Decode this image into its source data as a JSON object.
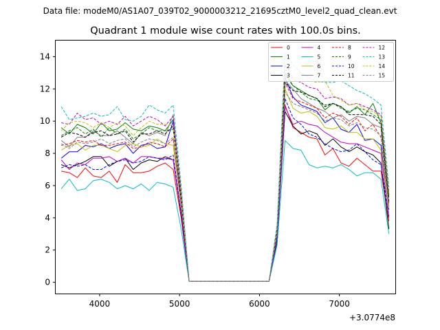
{
  "figure": {
    "suptitle": "Data file: modeM0/AS1A07_039T02_9000003212_21695cztM0_level2_quad_clean.evt"
  },
  "chart_data": {
    "type": "line",
    "title": "Quadrant 1 module wise count rates with 100.0s bins.",
    "xlabel": "",
    "ylabel": "",
    "x_offset_label": "+3.0774e8",
    "xlim": [
      3450,
      7700
    ],
    "ylim": [
      -0.7,
      15
    ],
    "xticks": [
      4000,
      5000,
      6000,
      7000
    ],
    "yticks": [
      0,
      2,
      4,
      6,
      8,
      10,
      12,
      14
    ],
    "grid": false,
    "legend": {
      "placement": "top-right",
      "columns": 4
    },
    "x": [
      3520,
      3620,
      3720,
      3820,
      3920,
      4020,
      4120,
      4220,
      4320,
      4420,
      4520,
      4620,
      4720,
      4820,
      4920,
      5020,
      5120,
      5220,
      5320,
      5420,
      5520,
      5620,
      5720,
      5820,
      5920,
      6020,
      6120,
      6220,
      6320,
      6420,
      6520,
      6620,
      6720,
      6820,
      6920,
      7020,
      7120,
      7220,
      7320,
      7420,
      7520,
      7620
    ],
    "series": [
      {
        "name": "0",
        "color": "#ff0000",
        "dash": "solid",
        "values": [
          6.9,
          6.8,
          6.5,
          7.1,
          6.6,
          6.5,
          6.9,
          6.2,
          7.3,
          6.8,
          6.8,
          6.9,
          7.2,
          7.4,
          7.0,
          4.0,
          0.05,
          0.05,
          0.05,
          0.05,
          0.05,
          0.05,
          0.05,
          0.05,
          0.05,
          0.05,
          0.05,
          2.5,
          11.0,
          9.6,
          9.3,
          9.0,
          8.9,
          7.9,
          8.3,
          7.4,
          7.2,
          7.7,
          7.3,
          6.9,
          6.9,
          3.8
        ]
      },
      {
        "name": "1",
        "color": "#008000",
        "dash": "solid",
        "values": [
          9.6,
          9.2,
          9.8,
          9.6,
          9.2,
          9.9,
          9.4,
          9.5,
          9.9,
          9.5,
          9.4,
          9.7,
          9.6,
          9.4,
          10.1,
          5.5,
          0.05,
          0.05,
          0.05,
          0.05,
          0.05,
          0.05,
          0.05,
          0.05,
          0.05,
          0.05,
          0.05,
          3.2,
          13.0,
          12.2,
          11.9,
          11.6,
          11.4,
          10.7,
          11.1,
          10.9,
          10.5,
          10.9,
          10.4,
          11.1,
          9.9,
          5.3
        ]
      },
      {
        "name": "2",
        "color": "#0000ff",
        "dash": "solid",
        "values": [
          7.7,
          8.1,
          8.1,
          8.5,
          8.4,
          8.6,
          8.3,
          8.5,
          8.6,
          8.0,
          8.5,
          8.6,
          8.3,
          8.4,
          10.0,
          4.9,
          0.05,
          0.05,
          0.05,
          0.05,
          0.05,
          0.05,
          0.05,
          0.05,
          0.05,
          0.05,
          0.05,
          2.9,
          12.7,
          11.5,
          11.0,
          10.8,
          10.6,
          9.9,
          10.2,
          9.5,
          9.3,
          9.8,
          8.8,
          8.9,
          8.5,
          4.5
        ]
      },
      {
        "name": "3",
        "color": "#000000",
        "dash": "solid",
        "values": [
          7.3,
          7.1,
          7.3,
          7.5,
          7.8,
          7.8,
          7.2,
          7.5,
          7.7,
          7.0,
          7.4,
          7.6,
          7.5,
          7.8,
          7.6,
          4.2,
          0.05,
          0.05,
          0.05,
          0.05,
          0.05,
          0.05,
          0.05,
          0.05,
          0.05,
          0.05,
          0.05,
          2.6,
          10.6,
          9.7,
          9.2,
          9.4,
          9.2,
          8.5,
          8.9,
          8.4,
          8.1,
          8.4,
          8.1,
          7.9,
          7.4,
          3.3
        ]
      },
      {
        "name": "4",
        "color": "#bf00bf",
        "dash": "solid",
        "values": [
          7.6,
          7.0,
          7.4,
          7.3,
          7.7,
          7.7,
          7.8,
          7.5,
          7.7,
          7.4,
          7.8,
          7.8,
          7.7,
          7.7,
          7.6,
          4.3,
          0.05,
          0.05,
          0.05,
          0.05,
          0.05,
          0.05,
          0.05,
          0.05,
          0.05,
          0.05,
          0.05,
          2.7,
          10.9,
          9.8,
          10.0,
          9.8,
          9.7,
          9.3,
          9.0,
          8.7,
          8.6,
          8.6,
          8.4,
          8.2,
          8.0,
          4.0
        ]
      },
      {
        "name": "5",
        "color": "#00bfbf",
        "dash": "solid",
        "values": [
          5.8,
          6.4,
          5.7,
          5.8,
          6.3,
          6.4,
          6.2,
          5.8,
          6.0,
          5.8,
          6.1,
          5.7,
          6.2,
          6.1,
          5.9,
          3.3,
          0.05,
          0.05,
          0.05,
          0.05,
          0.05,
          0.05,
          0.05,
          0.05,
          0.05,
          0.05,
          0.05,
          2.3,
          8.8,
          8.3,
          8.2,
          7.3,
          7.1,
          7.2,
          7.1,
          7.3,
          7.0,
          6.6,
          6.8,
          6.8,
          6.4,
          3.0
        ]
      },
      {
        "name": "6",
        "color": "#bfbf00",
        "dash": "solid",
        "values": [
          8.2,
          8.5,
          8.6,
          8.2,
          8.5,
          8.5,
          8.3,
          8.1,
          8.5,
          8.6,
          8.4,
          8.5,
          8.9,
          8.6,
          8.5,
          4.8,
          0.05,
          0.05,
          0.05,
          0.05,
          0.05,
          0.05,
          0.05,
          0.05,
          0.05,
          0.05,
          0.05,
          3.0,
          12.0,
          10.8,
          10.5,
          10.6,
          10.3,
          9.6,
          9.5,
          9.7,
          9.3,
          9.3,
          8.9,
          8.9,
          8.2,
          4.6
        ]
      },
      {
        "name": "7",
        "color": "#808080",
        "dash": "solid",
        "values": [
          8.8,
          8.4,
          9.0,
          9.0,
          9.4,
          9.1,
          9.1,
          9.4,
          9.0,
          8.6,
          9.3,
          9.1,
          9.3,
          9.1,
          10.4,
          5.3,
          0.05,
          0.05,
          0.05,
          0.05,
          0.05,
          0.05,
          0.05,
          0.05,
          0.05,
          0.05,
          0.05,
          3.1,
          12.5,
          12.0,
          11.4,
          11.1,
          10.8,
          10.6,
          10.2,
          10.4,
          10.0,
          10.3,
          10.2,
          9.8,
          9.6,
          4.9
        ]
      },
      {
        "name": "8",
        "color": "#ff0000",
        "dash": "dashed",
        "values": [
          8.5,
          8.6,
          8.8,
          8.7,
          8.8,
          8.5,
          8.5,
          8.6,
          8.7,
          8.3,
          8.4,
          8.7,
          8.6,
          8.4,
          8.9,
          4.8,
          0.05,
          0.05,
          0.05,
          0.05,
          0.05,
          0.05,
          0.05,
          0.05,
          0.05,
          0.05,
          0.05,
          3.0,
          12.4,
          11.4,
          11.2,
          11.0,
          10.8,
          10.2,
          10.5,
          10.3,
          9.8,
          10.2,
          9.4,
          9.8,
          9.0,
          4.8
        ]
      },
      {
        "name": "9",
        "color": "#008000",
        "dash": "dashed",
        "values": [
          9.1,
          9.4,
          9.6,
          9.2,
          9.5,
          9.0,
          9.6,
          9.2,
          9.5,
          8.9,
          9.2,
          9.6,
          9.4,
          9.4,
          9.5,
          5.3,
          0.05,
          0.05,
          0.05,
          0.05,
          0.05,
          0.05,
          0.05,
          0.05,
          0.05,
          0.05,
          0.05,
          3.2,
          12.8,
          12.2,
          11.8,
          11.4,
          11.3,
          11.0,
          11.1,
          10.8,
          10.6,
          10.8,
          10.7,
          10.4,
          10.1,
          5.4
        ]
      },
      {
        "name": "10",
        "color": "#0000ff",
        "dash": "dashed",
        "values": [
          7.1,
          7.3,
          7.2,
          7.3,
          7.0,
          7.0,
          7.3,
          7.5,
          7.6,
          7.4,
          7.5,
          7.8,
          7.7,
          7.6,
          7.9,
          4.3,
          0.05,
          0.05,
          0.05,
          0.05,
          0.05,
          0.05,
          0.05,
          0.05,
          0.05,
          0.05,
          0.05,
          2.7,
          11.4,
          10.2,
          9.8,
          9.2,
          9.0,
          8.6,
          8.3,
          8.1,
          8.2,
          8.6,
          8.1,
          7.6,
          7.3,
          4.1
        ]
      },
      {
        "name": "11",
        "color": "#000000",
        "dash": "dashed",
        "values": [
          9.0,
          9.3,
          9.2,
          9.0,
          9.3,
          9.4,
          9.1,
          9.2,
          9.4,
          8.7,
          9.2,
          9.2,
          9.4,
          9.2,
          9.7,
          5.2,
          0.05,
          0.05,
          0.05,
          0.05,
          0.05,
          0.05,
          0.05,
          0.05,
          0.05,
          0.05,
          0.05,
          3.2,
          12.4,
          11.9,
          11.8,
          11.6,
          11.4,
          10.9,
          11.1,
          10.9,
          10.4,
          10.4,
          10.4,
          10.3,
          9.8,
          5.0
        ]
      },
      {
        "name": "12",
        "color": "#bf00bf",
        "dash": "dashed",
        "values": [
          9.9,
          9.8,
          10.5,
          10.1,
          10.2,
          9.8,
          10.0,
          9.8,
          10.3,
          9.7,
          10.0,
          10.3,
          10.1,
          9.7,
          10.3,
          5.7,
          0.05,
          0.05,
          0.05,
          0.05,
          0.05,
          0.05,
          0.05,
          0.05,
          0.05,
          0.05,
          0.05,
          3.4,
          13.5,
          12.6,
          12.4,
          12.1,
          12.0,
          11.4,
          11.5,
          11.4,
          11.0,
          11.1,
          10.9,
          10.7,
          10.4,
          5.6
        ]
      },
      {
        "name": "13",
        "color": "#00bfbf",
        "dash": "dashed",
        "values": [
          10.9,
          10.1,
          10.2,
          10.3,
          10.5,
          10.3,
          10.4,
          10.9,
          10.1,
          10.0,
          10.3,
          11.0,
          10.7,
          10.5,
          11.0,
          6.0,
          0.05,
          0.05,
          0.05,
          0.05,
          0.05,
          0.05,
          0.05,
          0.05,
          0.05,
          0.05,
          0.05,
          3.6,
          14.2,
          13.5,
          13.0,
          12.7,
          12.5,
          12.4,
          12.4,
          12.5,
          12.2,
          11.9,
          11.7,
          11.4,
          11.0,
          5.9
        ]
      },
      {
        "name": "14",
        "color": "#bfbf00",
        "dash": "dashed",
        "values": [
          9.4,
          9.9,
          10.0,
          9.9,
          9.6,
          9.9,
          9.6,
          9.9,
          9.7,
          9.1,
          9.6,
          10.0,
          9.8,
          9.8,
          9.7,
          5.4,
          0.05,
          0.05,
          0.05,
          0.05,
          0.05,
          0.05,
          0.05,
          0.05,
          0.05,
          0.05,
          0.05,
          3.3,
          13.2,
          12.7,
          12.6,
          12.5,
          12.4,
          12.5,
          11.6,
          11.3,
          11.0,
          11.1,
          10.7,
          10.6,
          10.3,
          5.5
        ]
      },
      {
        "name": "15",
        "color": "#808080",
        "dash": "dashed",
        "values": [
          8.6,
          8.3,
          8.7,
          8.6,
          8.7,
          8.9,
          8.6,
          8.8,
          8.9,
          8.4,
          8.7,
          8.9,
          8.8,
          8.6,
          9.0,
          4.9,
          0.05,
          0.05,
          0.05,
          0.05,
          0.05,
          0.05,
          0.05,
          0.05,
          0.05,
          0.05,
          0.05,
          3.0,
          11.8,
          11.1,
          10.9,
          10.7,
          10.5,
          10.0,
          10.2,
          10.1,
          9.7,
          9.9,
          9.6,
          9.5,
          9.1,
          4.7
        ]
      }
    ]
  }
}
